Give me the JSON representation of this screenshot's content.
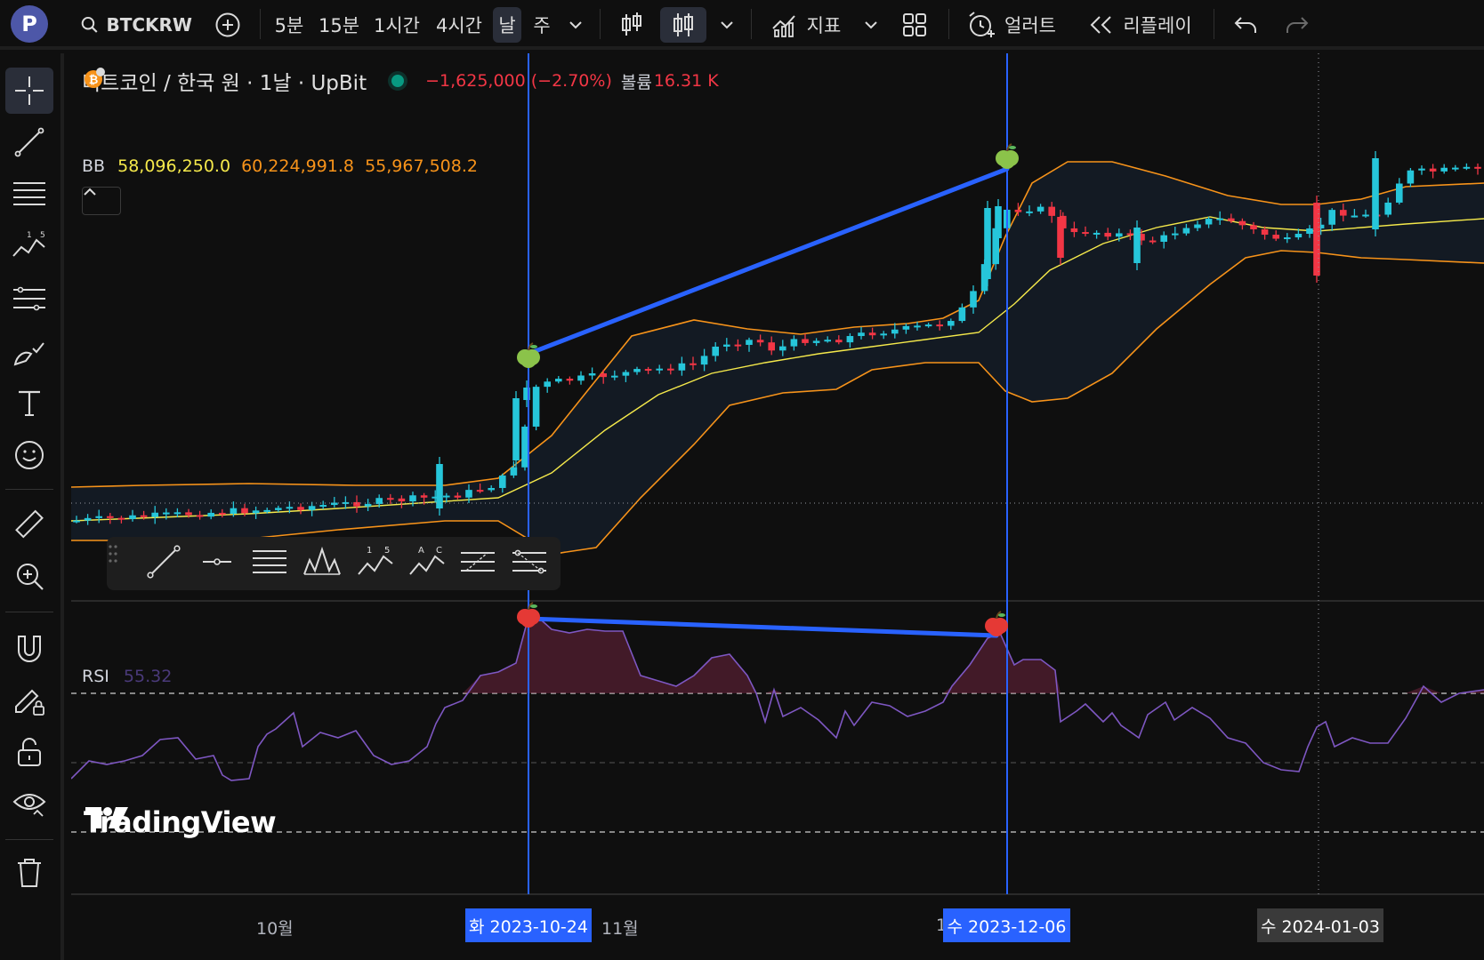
{
  "topbar": {
    "avatar_letter": "P",
    "symbol": "BTCKRW",
    "intervals": [
      "5분",
      "15분",
      "1시간",
      "4시간",
      "날",
      "주"
    ],
    "active_interval": "날",
    "indicators_label": "지표",
    "alert_label": "얼러트",
    "replay_label": "리플레이"
  },
  "legend": {
    "title": "비트코인 / 한국 원 · 1날 · UpBit",
    "change": "−1,625,000 (−2.70%)",
    "volume_label": "볼륨",
    "volume_value": "16.31 K",
    "bb_label": "BB",
    "bb_basis": "58,096,250.0",
    "bb_upper": "60,224,991.8",
    "bb_lower": "55,967,508.2"
  },
  "rsi": {
    "label": "RSI",
    "value": "55.32"
  },
  "time_axis": {
    "month_oct": "10월",
    "month_nov": "11월",
    "month_dec_partial": "1",
    "crosshair_1": "화 2023-10-24",
    "crosshair_2": "수 2023-12-06",
    "crosshair_3": "수 2024-01-03"
  },
  "watermark": "TradingView",
  "colors": {
    "up": "#26c6da",
    "down": "#f23645",
    "bb_upper_lower": "#f7931a",
    "bb_basis": "#f5e94b",
    "rsi_line": "#7e57c2",
    "divergence_line": "#2962ff",
    "crosshair": "#2962ff"
  },
  "chart_data": {
    "type": "candlestick",
    "symbol": "BTCKRW",
    "interval": "1D",
    "indicators": [
      "Bollinger Bands",
      "RSI"
    ],
    "annotations": [
      {
        "type": "trendline",
        "pane": "price",
        "from_date": "2023-10-24",
        "to_date": "2023-12-06",
        "direction": "up"
      },
      {
        "type": "trendline",
        "pane": "rsi",
        "from_date": "2023-10-24",
        "to_date": "2023-12-06",
        "direction": "down"
      }
    ],
    "rsi_levels": [
      70,
      50,
      30
    ]
  }
}
